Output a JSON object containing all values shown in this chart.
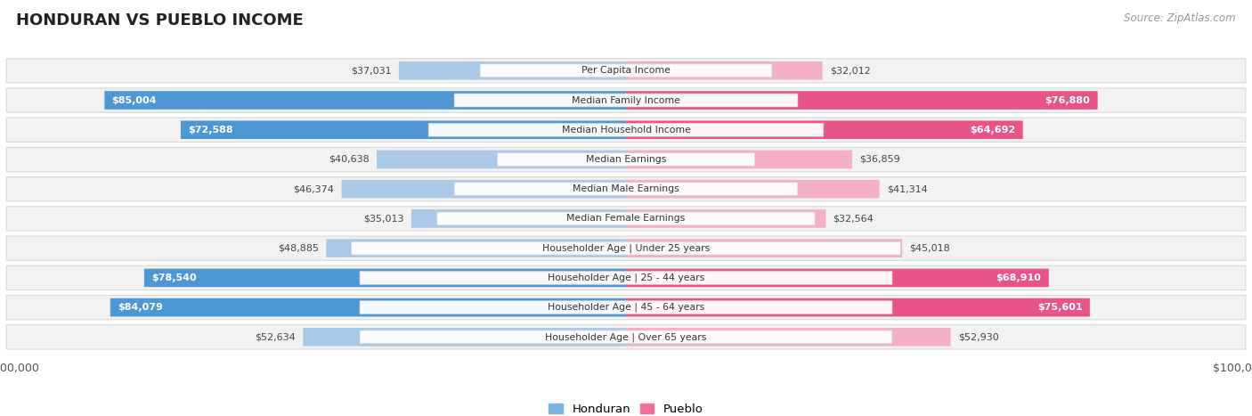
{
  "title": "HONDURAN VS PUEBLO INCOME",
  "source": "Source: ZipAtlas.com",
  "categories": [
    "Per Capita Income",
    "Median Family Income",
    "Median Household Income",
    "Median Earnings",
    "Median Male Earnings",
    "Median Female Earnings",
    "Householder Age | Under 25 years",
    "Householder Age | 25 - 44 years",
    "Householder Age | 45 - 64 years",
    "Householder Age | Over 65 years"
  ],
  "honduran_values": [
    37031,
    85004,
    72588,
    40638,
    46374,
    35013,
    48885,
    78540,
    84079,
    52634
  ],
  "pueblo_values": [
    32012,
    76880,
    64692,
    36859,
    41314,
    32564,
    45018,
    68910,
    75601,
    52930
  ],
  "max_value": 100000,
  "honduran_color_light": "#aac9e8",
  "honduran_color_dark": "#4d97d4",
  "pueblo_color_light": "#f5aec8",
  "pueblo_color_dark": "#e8538a",
  "row_bg_color": "#f2f2f2",
  "row_border_color": "#d8d8d8",
  "title_color": "#222222",
  "source_color": "#999999",
  "axis_label_color": "#555555",
  "value_threshold_dark": 60000,
  "legend_honduran_color": "#7ab5e0",
  "legend_pueblo_color": "#f07098"
}
